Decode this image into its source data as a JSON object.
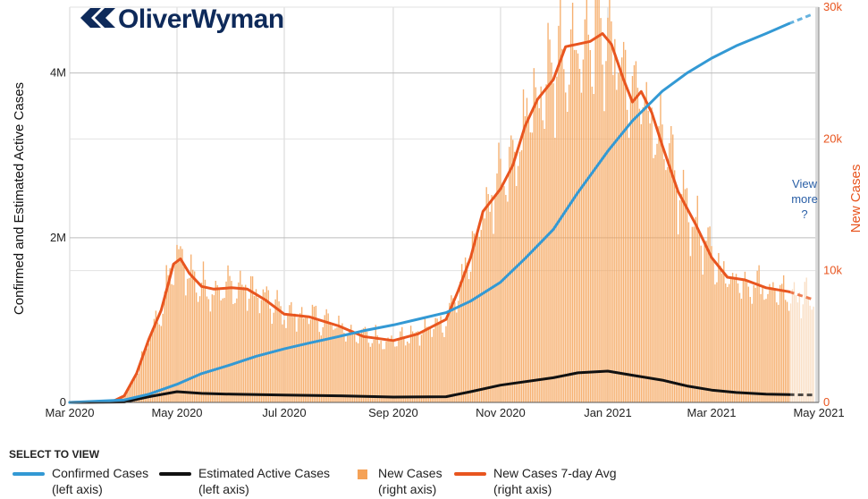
{
  "logo": {
    "text": "OliverWyman"
  },
  "view_more": {
    "line1": "View",
    "line2": "more",
    "line3": "?"
  },
  "legend": {
    "title": "SELECT TO VIEW",
    "items": [
      {
        "label": "Confirmed Cases",
        "sub": "(left axis)",
        "color": "#3399d4",
        "kind": "line"
      },
      {
        "label": "Estimated Active Cases",
        "sub": "(left axis)",
        "color": "#111111",
        "kind": "line"
      },
      {
        "label": "New Cases",
        "sub": "(right axis)",
        "color": "#f5a257",
        "kind": "box"
      },
      {
        "label": "New Cases 7-day Avg",
        "sub": "(right axis)",
        "color": "#e8551f",
        "kind": "line"
      }
    ]
  },
  "chart_data": {
    "type": "bar+line",
    "ylabel": "Confirmed and Estimated Active Cases",
    "ylabel_right": "New Cases",
    "ylim": [
      0,
      4800000
    ],
    "ylim_right": [
      0,
      30000
    ],
    "y_ticks": [
      {
        "value": 0,
        "label": "0"
      },
      {
        "value": 2000000,
        "label": "2M"
      },
      {
        "value": 4000000,
        "label": "4M"
      }
    ],
    "y_ticks_right": [
      {
        "value": 0,
        "label": "0"
      },
      {
        "value": 10000,
        "label": "10k"
      },
      {
        "value": 20000,
        "label": "20k"
      },
      {
        "value": 30000,
        "label": "30k"
      }
    ],
    "x_start": "2020-03-01",
    "x_end": "2021-05-01",
    "x_ticks": [
      {
        "date": "2020-03-01",
        "label": "Mar 2020"
      },
      {
        "date": "2020-05-01",
        "label": "May 2020"
      },
      {
        "date": "2020-07-01",
        "label": "Jul 2020"
      },
      {
        "date": "2020-09-01",
        "label": "Sep 2020"
      },
      {
        "date": "2020-11-01",
        "label": "Nov 2020"
      },
      {
        "date": "2021-01-01",
        "label": "Jan 2021"
      },
      {
        "date": "2021-03-01",
        "label": "Mar 2021"
      },
      {
        "date": "2021-05-01",
        "label": "May 2021"
      }
    ],
    "projection_start": "2021-04-14",
    "projection_end": "2021-04-28",
    "view_more_region_start": "2021-04-29",
    "series": [
      {
        "name": "Confirmed Cases",
        "axis": "left",
        "color": "#3399d4",
        "points": [
          [
            "2020-03-01",
            0
          ],
          [
            "2020-04-01",
            30000
          ],
          [
            "2020-04-15",
            100000
          ],
          [
            "2020-05-01",
            220000
          ],
          [
            "2020-05-15",
            350000
          ],
          [
            "2020-06-01",
            460000
          ],
          [
            "2020-06-15",
            560000
          ],
          [
            "2020-07-01",
            650000
          ],
          [
            "2020-07-15",
            720000
          ],
          [
            "2020-08-01",
            800000
          ],
          [
            "2020-08-15",
            870000
          ],
          [
            "2020-09-01",
            940000
          ],
          [
            "2020-09-15",
            1010000
          ],
          [
            "2020-10-01",
            1090000
          ],
          [
            "2020-10-15",
            1230000
          ],
          [
            "2020-11-01",
            1460000
          ],
          [
            "2020-11-15",
            1750000
          ],
          [
            "2020-12-01",
            2100000
          ],
          [
            "2020-12-15",
            2550000
          ],
          [
            "2021-01-01",
            3050000
          ],
          [
            "2021-01-15",
            3420000
          ],
          [
            "2021-02-01",
            3780000
          ],
          [
            "2021-02-15",
            4000000
          ],
          [
            "2021-03-01",
            4180000
          ],
          [
            "2021-03-15",
            4330000
          ],
          [
            "2021-04-01",
            4480000
          ],
          [
            "2021-04-14",
            4600000
          ],
          [
            "2021-04-28",
            4720000
          ]
        ]
      },
      {
        "name": "Estimated Active Cases",
        "axis": "left",
        "color": "#111111",
        "points": [
          [
            "2020-03-01",
            0
          ],
          [
            "2020-04-01",
            5000
          ],
          [
            "2020-04-15",
            70000
          ],
          [
            "2020-05-01",
            130000
          ],
          [
            "2020-05-15",
            110000
          ],
          [
            "2020-06-01",
            100000
          ],
          [
            "2020-07-01",
            90000
          ],
          [
            "2020-08-01",
            80000
          ],
          [
            "2020-09-01",
            65000
          ],
          [
            "2020-10-01",
            70000
          ],
          [
            "2020-10-15",
            130000
          ],
          [
            "2020-11-01",
            210000
          ],
          [
            "2020-12-01",
            300000
          ],
          [
            "2020-12-15",
            360000
          ],
          [
            "2021-01-01",
            380000
          ],
          [
            "2021-01-15",
            330000
          ],
          [
            "2021-02-01",
            270000
          ],
          [
            "2021-02-15",
            200000
          ],
          [
            "2021-03-01",
            150000
          ],
          [
            "2021-03-15",
            120000
          ],
          [
            "2021-04-01",
            100000
          ],
          [
            "2021-04-14",
            95000
          ],
          [
            "2021-04-28",
            90000
          ]
        ]
      },
      {
        "name": "New Cases 7-day Avg",
        "axis": "right",
        "color": "#e8551f",
        "points": [
          [
            "2020-03-01",
            0
          ],
          [
            "2020-03-25",
            50
          ],
          [
            "2020-04-01",
            500
          ],
          [
            "2020-04-08",
            2200
          ],
          [
            "2020-04-15",
            4800
          ],
          [
            "2020-04-22",
            7000
          ],
          [
            "2020-04-29",
            10500
          ],
          [
            "2020-05-03",
            10900
          ],
          [
            "2020-05-08",
            9800
          ],
          [
            "2020-05-15",
            8800
          ],
          [
            "2020-05-22",
            8600
          ],
          [
            "2020-06-01",
            8700
          ],
          [
            "2020-06-10",
            8600
          ],
          [
            "2020-06-20",
            7800
          ],
          [
            "2020-07-01",
            6700
          ],
          [
            "2020-07-15",
            6500
          ],
          [
            "2020-08-01",
            5800
          ],
          [
            "2020-08-15",
            5000
          ],
          [
            "2020-09-01",
            4700
          ],
          [
            "2020-09-15",
            5200
          ],
          [
            "2020-10-01",
            6300
          ],
          [
            "2020-10-08",
            8500
          ],
          [
            "2020-10-15",
            11000
          ],
          [
            "2020-10-22",
            14500
          ],
          [
            "2020-11-01",
            16200
          ],
          [
            "2020-11-08",
            18000
          ],
          [
            "2020-11-15",
            21000
          ],
          [
            "2020-11-22",
            23000
          ],
          [
            "2020-12-01",
            24500
          ],
          [
            "2020-12-08",
            27000
          ],
          [
            "2020-12-15",
            27200
          ],
          [
            "2020-12-22",
            27400
          ],
          [
            "2020-12-29",
            28000
          ],
          [
            "2021-01-03",
            27200
          ],
          [
            "2021-01-10",
            24500
          ],
          [
            "2021-01-15",
            22800
          ],
          [
            "2021-01-20",
            23600
          ],
          [
            "2021-01-26",
            22000
          ],
          [
            "2021-02-01",
            19500
          ],
          [
            "2021-02-10",
            16000
          ],
          [
            "2021-02-20",
            13500
          ],
          [
            "2021-03-01",
            11000
          ],
          [
            "2021-03-10",
            9500
          ],
          [
            "2021-03-20",
            9300
          ],
          [
            "2021-04-01",
            8700
          ],
          [
            "2021-04-14",
            8400
          ],
          [
            "2021-04-28",
            7800
          ]
        ]
      },
      {
        "name": "New Cases",
        "axis": "right",
        "color": "#f5a257",
        "kind": "daily-bars",
        "seed": 12345,
        "noise": 0.1
      }
    ]
  }
}
